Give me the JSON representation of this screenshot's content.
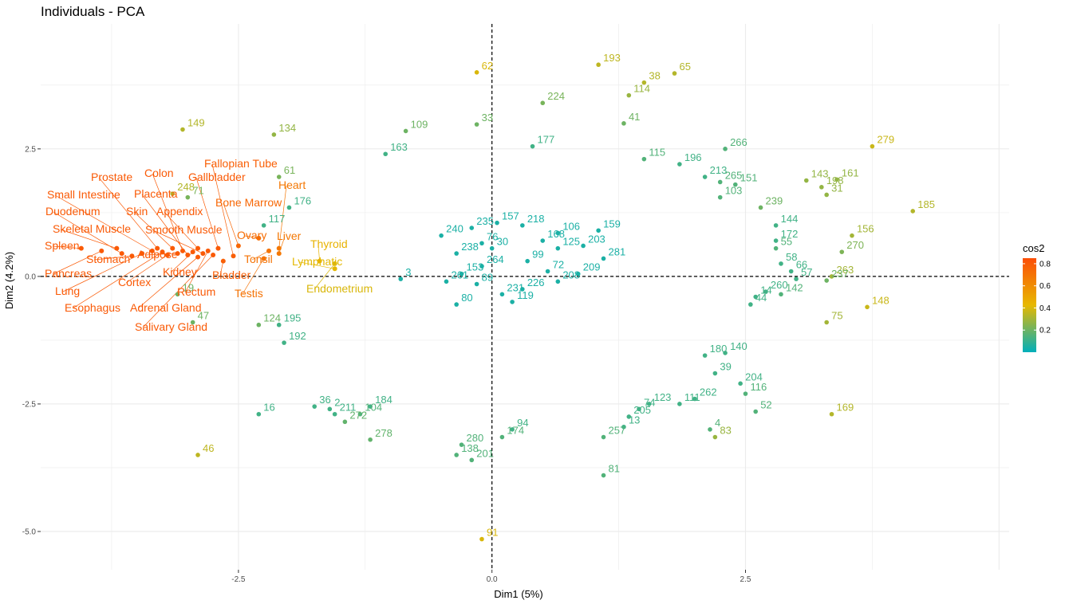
{
  "chart_data": {
    "type": "scatter",
    "title": "Individuals - PCA",
    "xlabel": "Dim1 (5%)",
    "ylabel": "Dim2 (4.2%)",
    "xlim": [
      -4.45,
      5.1
    ],
    "ylim": [
      -5.75,
      4.95
    ],
    "x_ticks": [
      -2.5,
      0.0,
      2.5
    ],
    "x_tick_labels": [
      "-2.5",
      "0.0",
      "2.5"
    ],
    "y_ticks": [
      -5.0,
      -2.5,
      0.0,
      2.5
    ],
    "y_tick_labels": [
      "-5.0",
      "-2.5",
      "0.0",
      "2.5"
    ],
    "grid": true,
    "reference_lines": {
      "x": 0,
      "y": 0,
      "style": "dashed"
    },
    "legend": {
      "title": "cos2",
      "position": "right",
      "ticks": [
        0.2,
        0.4,
        0.6,
        0.8
      ],
      "tick_labels": [
        "0.2",
        "0.4",
        "0.6",
        "0.8"
      ],
      "range": [
        0.0,
        0.85
      ]
    },
    "colors": {
      "low": "#00AFBB",
      "mid": "#E7B800",
      "high": "#FC4E07"
    },
    "points": [
      {
        "x": -0.15,
        "y": 4.0,
        "label": "62",
        "cos2": 0.4
      },
      {
        "x": 1.05,
        "y": 4.15,
        "label": "193",
        "cos2": 0.35
      },
      {
        "x": 1.5,
        "y": 3.8,
        "label": "38",
        "cos2": 0.33
      },
      {
        "x": 1.8,
        "y": 3.98,
        "label": "65",
        "cos2": 0.33
      },
      {
        "x": 1.35,
        "y": 3.55,
        "label": "114",
        "cos2": 0.28
      },
      {
        "x": 0.5,
        "y": 3.4,
        "label": "224",
        "cos2": 0.22
      },
      {
        "x": -0.15,
        "y": 2.98,
        "label": "33",
        "cos2": 0.2
      },
      {
        "x": -0.85,
        "y": 2.85,
        "label": "109",
        "cos2": 0.2
      },
      {
        "x": -3.05,
        "y": 2.88,
        "label": "149",
        "cos2": 0.33
      },
      {
        "x": -2.15,
        "y": 2.78,
        "label": "134",
        "cos2": 0.27
      },
      {
        "x": 1.3,
        "y": 3.0,
        "label": "41",
        "cos2": 0.2
      },
      {
        "x": 3.75,
        "y": 2.55,
        "label": "279",
        "cos2": 0.37
      },
      {
        "x": 4.15,
        "y": 1.28,
        "label": "185",
        "cos2": 0.33
      },
      {
        "x": 3.1,
        "y": 1.88,
        "label": "143",
        "cos2": 0.27
      },
      {
        "x": 3.25,
        "y": 1.75,
        "label": "198",
        "cos2": 0.27
      },
      {
        "x": 3.4,
        "y": 1.9,
        "label": "161",
        "cos2": 0.27
      },
      {
        "x": 3.3,
        "y": 1.6,
        "label": "31",
        "cos2": 0.27
      },
      {
        "x": 2.65,
        "y": 1.35,
        "label": "239",
        "cos2": 0.2
      },
      {
        "x": 3.55,
        "y": 0.8,
        "label": "156",
        "cos2": 0.3
      },
      {
        "x": 3.45,
        "y": 0.48,
        "label": "270",
        "cos2": 0.23
      },
      {
        "x": 3.35,
        "y": 0.0,
        "label": "263",
        "cos2": 0.3
      },
      {
        "x": 3.3,
        "y": -0.08,
        "label": "237",
        "cos2": 0.2
      },
      {
        "x": 3.7,
        "y": -0.6,
        "label": "148",
        "cos2": 0.37
      },
      {
        "x": 3.3,
        "y": -0.9,
        "label": "75",
        "cos2": 0.3
      },
      {
        "x": 3.35,
        "y": -2.7,
        "label": "169",
        "cos2": 0.33
      },
      {
        "x": -2.9,
        "y": -3.5,
        "label": "46",
        "cos2": 0.35
      },
      {
        "x": -0.1,
        "y": -5.15,
        "label": "91",
        "cos2": 0.4
      },
      {
        "x": 1.1,
        "y": -3.9,
        "label": "81",
        "cos2": 0.15
      },
      {
        "x": -0.35,
        "y": -3.5,
        "label": "138",
        "cos2": 0.15
      },
      {
        "x": -0.2,
        "y": -3.6,
        "label": "201",
        "cos2": 0.15
      },
      {
        "x": -0.3,
        "y": -3.3,
        "label": "280",
        "cos2": 0.15
      },
      {
        "x": -1.2,
        "y": -3.2,
        "label": "278",
        "cos2": 0.18
      },
      {
        "x": -1.45,
        "y": -2.85,
        "label": "272",
        "cos2": 0.18
      },
      {
        "x": -2.3,
        "y": -2.7,
        "label": "16",
        "cos2": 0.12
      },
      {
        "x": -1.6,
        "y": -2.6,
        "label": "2",
        "cos2": 0.12
      },
      {
        "x": -1.75,
        "y": -2.55,
        "label": "36",
        "cos2": 0.12
      },
      {
        "x": -1.55,
        "y": -2.7,
        "label": "211",
        "cos2": 0.12
      },
      {
        "x": -1.3,
        "y": -2.7,
        "label": "104",
        "cos2": 0.15
      },
      {
        "x": -1.2,
        "y": -2.55,
        "label": "184",
        "cos2": 0.12
      },
      {
        "x": 2.2,
        "y": -3.15,
        "label": "83",
        "cos2": 0.28
      },
      {
        "x": 2.15,
        "y": -3.0,
        "label": "4",
        "cos2": 0.15
      },
      {
        "x": 1.1,
        "y": -3.15,
        "label": "257",
        "cos2": 0.15
      },
      {
        "x": 1.3,
        "y": -2.95,
        "label": "13",
        "cos2": 0.12
      },
      {
        "x": 1.35,
        "y": -2.75,
        "label": "205",
        "cos2": 0.12
      },
      {
        "x": 1.45,
        "y": -2.6,
        "label": "74",
        "cos2": 0.12
      },
      {
        "x": 1.55,
        "y": -2.5,
        "label": "123",
        "cos2": 0.12
      },
      {
        "x": 0.1,
        "y": -3.15,
        "label": "174",
        "cos2": 0.15
      },
      {
        "x": 0.2,
        "y": -3.0,
        "label": "94",
        "cos2": 0.12
      },
      {
        "x": 2.6,
        "y": -2.65,
        "label": "52",
        "cos2": 0.15
      },
      {
        "x": 2.5,
        "y": -2.3,
        "label": "116",
        "cos2": 0.15
      },
      {
        "x": -2.3,
        "y": -0.95,
        "label": "124",
        "cos2": 0.2
      },
      {
        "x": -2.95,
        "y": -0.9,
        "label": "47",
        "cos2": 0.2
      },
      {
        "x": -2.1,
        "y": -0.95,
        "label": "195",
        "cos2": 0.12
      },
      {
        "x": -2.05,
        "y": -1.3,
        "label": "192",
        "cos2": 0.12
      },
      {
        "x": -3.1,
        "y": -0.35,
        "label": "19",
        "cos2": 0.2
      },
      {
        "x": -2.1,
        "y": 1.95,
        "label": "61",
        "cos2": 0.22
      },
      {
        "x": -3.15,
        "y": 1.62,
        "label": "248",
        "cos2": 0.33
      },
      {
        "x": -3.0,
        "y": 1.55,
        "label": "71",
        "cos2": 0.22
      },
      {
        "x": -2.25,
        "y": 1.0,
        "label": "117",
        "cos2": 0.12
      },
      {
        "x": -2.0,
        "y": 1.35,
        "label": "176",
        "cos2": 0.12
      },
      {
        "x": -1.05,
        "y": 2.4,
        "label": "163",
        "cos2": 0.12
      },
      {
        "x": 0.4,
        "y": 2.55,
        "label": "177",
        "cos2": 0.12
      },
      {
        "x": 1.5,
        "y": 2.3,
        "label": "115",
        "cos2": 0.15
      },
      {
        "x": 2.3,
        "y": 2.5,
        "label": "266",
        "cos2": 0.15
      },
      {
        "x": 1.85,
        "y": 2.2,
        "label": "196",
        "cos2": 0.12
      },
      {
        "x": 2.1,
        "y": 1.95,
        "label": "213",
        "cos2": 0.12
      },
      {
        "x": 2.25,
        "y": 1.85,
        "label": "265",
        "cos2": 0.15
      },
      {
        "x": 2.4,
        "y": 1.8,
        "label": "151",
        "cos2": 0.15
      },
      {
        "x": 2.25,
        "y": 1.55,
        "label": "103",
        "cos2": 0.15
      },
      {
        "x": 2.8,
        "y": 1.0,
        "label": "144",
        "cos2": 0.12
      },
      {
        "x": 2.8,
        "y": 0.7,
        "label": "172",
        "cos2": 0.12
      },
      {
        "x": 2.8,
        "y": 0.55,
        "label": "55",
        "cos2": 0.15
      },
      {
        "x": 2.85,
        "y": 0.25,
        "label": "58",
        "cos2": 0.12
      },
      {
        "x": 2.95,
        "y": 0.1,
        "label": "66",
        "cos2": 0.12
      },
      {
        "x": 3.0,
        "y": -0.05,
        "label": "57",
        "cos2": 0.12
      },
      {
        "x": 2.6,
        "y": -0.4,
        "label": "14",
        "cos2": 0.12
      },
      {
        "x": 2.7,
        "y": -0.3,
        "label": "260",
        "cos2": 0.12
      },
      {
        "x": 2.85,
        "y": -0.35,
        "label": "142",
        "cos2": 0.15
      },
      {
        "x": 2.55,
        "y": -0.55,
        "label": "44",
        "cos2": 0.12
      },
      {
        "x": 2.1,
        "y": -1.55,
        "label": "180",
        "cos2": 0.12
      },
      {
        "x": 2.3,
        "y": -1.5,
        "label": "140",
        "cos2": 0.12
      },
      {
        "x": 2.2,
        "y": -1.9,
        "label": "39",
        "cos2": 0.12
      },
      {
        "x": 2.45,
        "y": -2.1,
        "label": "204",
        "cos2": 0.12
      },
      {
        "x": 2.0,
        "y": -2.4,
        "label": "262",
        "cos2": 0.12
      },
      {
        "x": 1.85,
        "y": -2.5,
        "label": "111",
        "cos2": 0.12
      },
      {
        "x": -0.35,
        "y": 0.45,
        "label": "238",
        "cos2": 0.05
      },
      {
        "x": 0.35,
        "y": 0.3,
        "label": "99",
        "cos2": 0.05
      },
      {
        "x": -0.1,
        "y": 0.2,
        "label": "264",
        "cos2": 0.05
      },
      {
        "x": -0.15,
        "y": -0.15,
        "label": "89",
        "cos2": 0.05
      },
      {
        "x": 0.55,
        "y": 0.1,
        "label": "72",
        "cos2": 0.05
      },
      {
        "x": 0.85,
        "y": 0.05,
        "label": "209",
        "cos2": 0.05
      },
      {
        "x": 1.1,
        "y": 0.35,
        "label": "281",
        "cos2": 0.05
      },
      {
        "x": 0.65,
        "y": -0.1,
        "label": "208",
        "cos2": 0.05
      },
      {
        "x": 0.3,
        "y": -0.25,
        "label": "226",
        "cos2": 0.05
      },
      {
        "x": 0.2,
        "y": -0.5,
        "label": "119",
        "cos2": 0.05
      },
      {
        "x": 0.1,
        "y": -0.35,
        "label": "231",
        "cos2": 0.05
      },
      {
        "x": -0.35,
        "y": -0.55,
        "label": "80",
        "cos2": 0.05
      },
      {
        "x": -0.45,
        "y": -0.1,
        "label": "261",
        "cos2": 0.05
      },
      {
        "x": -0.9,
        "y": -0.05,
        "label": "3",
        "cos2": 0.05
      },
      {
        "x": -0.3,
        "y": 0.05,
        "label": "153",
        "cos2": 0.05
      },
      {
        "x": -0.5,
        "y": 0.8,
        "label": "240",
        "cos2": 0.05
      },
      {
        "x": 0.0,
        "y": 0.55,
        "label": "30",
        "cos2": 0.05
      },
      {
        "x": 0.3,
        "y": 1.0,
        "label": "218",
        "cos2": 0.05
      },
      {
        "x": 0.65,
        "y": 0.85,
        "label": "106",
        "cos2": 0.05
      },
      {
        "x": 0.65,
        "y": 0.55,
        "label": "125",
        "cos2": 0.05
      },
      {
        "x": 0.9,
        "y": 0.6,
        "label": "203",
        "cos2": 0.05
      },
      {
        "x": 1.05,
        "y": 0.9,
        "label": "159",
        "cos2": 0.05
      },
      {
        "x": 0.5,
        "y": 0.7,
        "label": "168",
        "cos2": 0.05
      },
      {
        "x": -0.1,
        "y": 0.65,
        "label": "76",
        "cos2": 0.05
      },
      {
        "x": 0.05,
        "y": 1.05,
        "label": "157",
        "cos2": 0.05
      },
      {
        "x": -0.2,
        "y": 0.95,
        "label": "235",
        "cos2": 0.05
      }
    ],
    "tissues": [
      {
        "x": -4.05,
        "y": 0.55,
        "label": "Spleen",
        "cos2": 0.8
      },
      {
        "x": -3.85,
        "y": 0.5,
        "label": "Pancreas",
        "cos2": 0.8
      },
      {
        "x": -3.7,
        "y": 0.55,
        "label": "Skeletal Muscle",
        "cos2": 0.8
      },
      {
        "x": -3.65,
        "y": 0.45,
        "label": "Duodenum",
        "cos2": 0.8
      },
      {
        "x": -3.55,
        "y": 0.4,
        "label": "Stomach",
        "cos2": 0.8
      },
      {
        "x": -3.45,
        "y": 0.45,
        "label": "Lung",
        "cos2": 0.8
      },
      {
        "x": -3.35,
        "y": 0.5,
        "label": "Small Intestine",
        "cos2": 0.8
      },
      {
        "x": -3.3,
        "y": 0.55,
        "label": "Prostate",
        "cos2": 0.8
      },
      {
        "x": -3.25,
        "y": 0.48,
        "label": "Esophagus",
        "cos2": 0.8
      },
      {
        "x": -3.2,
        "y": 0.42,
        "label": "Cortex",
        "cos2": 0.8
      },
      {
        "x": -3.15,
        "y": 0.55,
        "label": "Skin",
        "cos2": 0.8
      },
      {
        "x": -3.1,
        "y": 0.45,
        "label": "Adipose",
        "cos2": 0.8
      },
      {
        "x": -3.05,
        "y": 0.5,
        "label": "Colon",
        "cos2": 0.8
      },
      {
        "x": -3.0,
        "y": 0.42,
        "label": "Placenta",
        "cos2": 0.8
      },
      {
        "x": -2.95,
        "y": 0.48,
        "label": "Kidney",
        "cos2": 0.8
      },
      {
        "x": -2.9,
        "y": 0.55,
        "label": "Appendix",
        "cos2": 0.8
      },
      {
        "x": -2.9,
        "y": 0.38,
        "label": "Adrenal Gland",
        "cos2": 0.8
      },
      {
        "x": -2.85,
        "y": 0.45,
        "label": "Smooth Muscle",
        "cos2": 0.8
      },
      {
        "x": -2.8,
        "y": 0.5,
        "label": "Rectum",
        "cos2": 0.8
      },
      {
        "x": -2.75,
        "y": 0.42,
        "label": "Salivary Gland",
        "cos2": 0.8
      },
      {
        "x": -2.7,
        "y": 0.55,
        "label": "Gallbladder",
        "cos2": 0.8
      },
      {
        "x": -2.65,
        "y": 0.3,
        "label": "Bladder",
        "cos2": 0.78
      },
      {
        "x": -2.55,
        "y": 0.4,
        "label": "Fallopian Tube",
        "cos2": 0.78
      },
      {
        "x": -2.5,
        "y": 0.6,
        "label": "Bone Marrow",
        "cos2": 0.75
      },
      {
        "x": -2.3,
        "y": 0.75,
        "label": "Ovary",
        "cos2": 0.72
      },
      {
        "x": -2.25,
        "y": 0.35,
        "label": "Testis",
        "cos2": 0.7
      },
      {
        "x": -2.2,
        "y": 0.5,
        "label": "Tonsil",
        "cos2": 0.7
      },
      {
        "x": -2.1,
        "y": 0.55,
        "label": "Heart",
        "cos2": 0.68
      },
      {
        "x": -2.1,
        "y": 0.45,
        "label": "Liver",
        "cos2": 0.68
      },
      {
        "x": -1.7,
        "y": 0.3,
        "label": "Thyroid",
        "cos2": 0.45
      },
      {
        "x": -1.55,
        "y": 0.15,
        "label": "Lymphatic",
        "cos2": 0.42
      },
      {
        "x": -1.55,
        "y": 0.25,
        "label": "Endometrium",
        "cos2": 0.4
      }
    ]
  }
}
